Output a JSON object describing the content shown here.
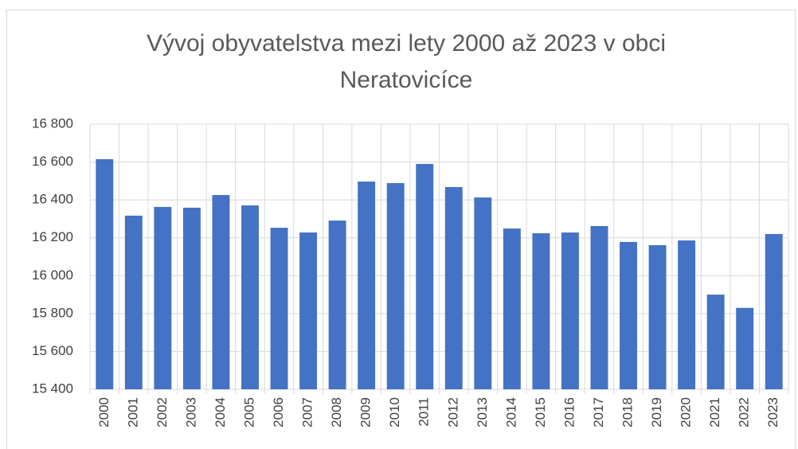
{
  "chart_data": {
    "type": "bar",
    "title": "Vývoj obyvatelstva mezi lety 2000 až 2023 v obci Neratovicíce",
    "categories": [
      "2000",
      "2001",
      "2002",
      "2003",
      "2004",
      "2005",
      "2006",
      "2007",
      "2008",
      "2009",
      "2010",
      "2011",
      "2012",
      "2013",
      "2014",
      "2015",
      "2016",
      "2017",
      "2018",
      "2019",
      "2020",
      "2021",
      "2022",
      "2023"
    ],
    "values": [
      16615,
      16317,
      16363,
      16359,
      16426,
      16371,
      16253,
      16228,
      16291,
      16497,
      16489,
      16590,
      16468,
      16413,
      16249,
      16224,
      16228,
      16262,
      16178,
      16161,
      16186,
      15900,
      15830,
      16220
    ],
    "color": "#4472c4",
    "ylim": [
      15400,
      16800
    ],
    "yticks": [
      {
        "value": 15400,
        "label": "15 400"
      },
      {
        "value": 15600,
        "label": "15 600"
      },
      {
        "value": 15800,
        "label": "15 800"
      },
      {
        "value": 16000,
        "label": "16 000"
      },
      {
        "value": 16200,
        "label": "16 200"
      },
      {
        "value": 16400,
        "label": "16 400"
      },
      {
        "value": 16600,
        "label": "16 600"
      },
      {
        "value": 16800,
        "label": "16 800"
      }
    ],
    "grid": true
  }
}
